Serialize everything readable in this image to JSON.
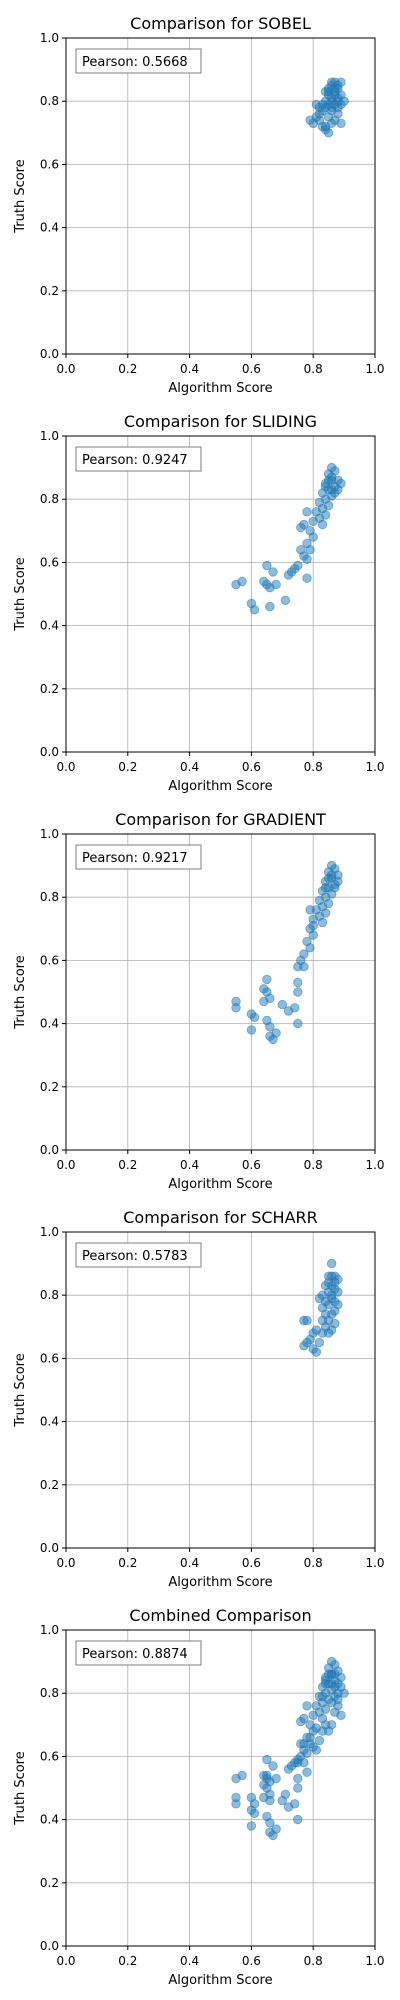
{
  "chart_data": [
    {
      "type": "scatter",
      "title": "Comparison for SOBEL",
      "xlabel": "Algorithm Score",
      "ylabel": "Truth Score",
      "xlim": [
        0,
        1
      ],
      "ylim": [
        0,
        1
      ],
      "xticks": [
        "0.0",
        "0.2",
        "0.4",
        "0.6",
        "0.8",
        "1.0"
      ],
      "yticks": [
        "0.0",
        "0.2",
        "0.4",
        "0.6",
        "0.8",
        "1.0"
      ],
      "grid": true,
      "annotation": "Pearson: 0.5668",
      "color": "#1f77b4",
      "points": [
        [
          0.86,
          0.85
        ],
        [
          0.87,
          0.86
        ],
        [
          0.88,
          0.84
        ],
        [
          0.85,
          0.83
        ],
        [
          0.89,
          0.82
        ],
        [
          0.86,
          0.81
        ],
        [
          0.87,
          0.83
        ],
        [
          0.88,
          0.8
        ],
        [
          0.85,
          0.79
        ],
        [
          0.84,
          0.78
        ],
        [
          0.83,
          0.77
        ],
        [
          0.86,
          0.78
        ],
        [
          0.87,
          0.79
        ],
        [
          0.88,
          0.76
        ],
        [
          0.85,
          0.75
        ],
        [
          0.82,
          0.74
        ],
        [
          0.83,
          0.72
        ],
        [
          0.84,
          0.71
        ],
        [
          0.86,
          0.73
        ],
        [
          0.87,
          0.74
        ],
        [
          0.89,
          0.73
        ],
        [
          0.81,
          0.75
        ],
        [
          0.8,
          0.73
        ],
        [
          0.79,
          0.74
        ],
        [
          0.85,
          0.7
        ],
        [
          0.84,
          0.72
        ],
        [
          0.86,
          0.86
        ],
        [
          0.88,
          0.85
        ],
        [
          0.89,
          0.86
        ],
        [
          0.87,
          0.84
        ],
        [
          0.85,
          0.84
        ],
        [
          0.84,
          0.8
        ],
        [
          0.83,
          0.79
        ],
        [
          0.82,
          0.78
        ],
        [
          0.86,
          0.77
        ],
        [
          0.88,
          0.78
        ],
        [
          0.9,
          0.8
        ],
        [
          0.89,
          0.79
        ],
        [
          0.86,
          0.8
        ],
        [
          0.85,
          0.82
        ],
        [
          0.87,
          0.82
        ],
        [
          0.84,
          0.83
        ],
        [
          0.88,
          0.81
        ],
        [
          0.81,
          0.79
        ],
        [
          0.82,
          0.76
        ]
      ]
    },
    {
      "type": "scatter",
      "title": "Comparison for SLIDING",
      "xlabel": "Algorithm Score",
      "ylabel": "Truth Score",
      "xlim": [
        0,
        1
      ],
      "ylim": [
        0,
        1
      ],
      "xticks": [
        "0.0",
        "0.2",
        "0.4",
        "0.6",
        "0.8",
        "1.0"
      ],
      "yticks": [
        "0.0",
        "0.2",
        "0.4",
        "0.6",
        "0.8",
        "1.0"
      ],
      "grid": true,
      "annotation": "Pearson: 0.9247",
      "color": "#1f77b4",
      "points": [
        [
          0.86,
          0.9
        ],
        [
          0.87,
          0.89
        ],
        [
          0.85,
          0.88
        ],
        [
          0.88,
          0.86
        ],
        [
          0.86,
          0.87
        ],
        [
          0.84,
          0.85
        ],
        [
          0.87,
          0.84
        ],
        [
          0.89,
          0.85
        ],
        [
          0.85,
          0.83
        ],
        [
          0.83,
          0.82
        ],
        [
          0.86,
          0.81
        ],
        [
          0.84,
          0.8
        ],
        [
          0.82,
          0.79
        ],
        [
          0.85,
          0.78
        ],
        [
          0.83,
          0.77
        ],
        [
          0.81,
          0.76
        ],
        [
          0.84,
          0.75
        ],
        [
          0.82,
          0.74
        ],
        [
          0.8,
          0.73
        ],
        [
          0.83,
          0.72
        ],
        [
          0.78,
          0.76
        ],
        [
          0.77,
          0.72
        ],
        [
          0.76,
          0.71
        ],
        [
          0.79,
          0.7
        ],
        [
          0.8,
          0.68
        ],
        [
          0.78,
          0.66
        ],
        [
          0.79,
          0.64
        ],
        [
          0.76,
          0.64
        ],
        [
          0.77,
          0.62
        ],
        [
          0.78,
          0.61
        ],
        [
          0.75,
          0.59
        ],
        [
          0.74,
          0.58
        ],
        [
          0.73,
          0.57
        ],
        [
          0.72,
          0.56
        ],
        [
          0.78,
          0.55
        ],
        [
          0.65,
          0.59
        ],
        [
          0.67,
          0.57
        ],
        [
          0.64,
          0.54
        ],
        [
          0.65,
          0.53
        ],
        [
          0.66,
          0.52
        ],
        [
          0.68,
          0.53
        ],
        [
          0.55,
          0.53
        ],
        [
          0.57,
          0.54
        ],
        [
          0.6,
          0.47
        ],
        [
          0.61,
          0.45
        ],
        [
          0.66,
          0.46
        ],
        [
          0.71,
          0.48
        ],
        [
          0.86,
          0.86
        ],
        [
          0.87,
          0.82
        ],
        [
          0.88,
          0.83
        ],
        [
          0.85,
          0.86
        ],
        [
          0.84,
          0.84
        ],
        [
          0.86,
          0.83
        ]
      ]
    },
    {
      "type": "scatter",
      "title": "Comparison for GRADIENT",
      "xlabel": "Algorithm Score",
      "ylabel": "Truth Score",
      "xlim": [
        0,
        1
      ],
      "ylim": [
        0,
        1
      ],
      "xticks": [
        "0.0",
        "0.2",
        "0.4",
        "0.6",
        "0.8",
        "1.0"
      ],
      "yticks": [
        "0.0",
        "0.2",
        "0.4",
        "0.6",
        "0.8",
        "1.0"
      ],
      "grid": true,
      "annotation": "Pearson: 0.9217",
      "color": "#1f77b4",
      "points": [
        [
          0.86,
          0.9
        ],
        [
          0.87,
          0.89
        ],
        [
          0.88,
          0.87
        ],
        [
          0.85,
          0.88
        ],
        [
          0.86,
          0.86
        ],
        [
          0.84,
          0.85
        ],
        [
          0.87,
          0.84
        ],
        [
          0.85,
          0.83
        ],
        [
          0.83,
          0.82
        ],
        [
          0.86,
          0.81
        ],
        [
          0.84,
          0.8
        ],
        [
          0.82,
          0.79
        ],
        [
          0.85,
          0.78
        ],
        [
          0.83,
          0.77
        ],
        [
          0.81,
          0.76
        ],
        [
          0.84,
          0.75
        ],
        [
          0.82,
          0.74
        ],
        [
          0.8,
          0.73
        ],
        [
          0.83,
          0.72
        ],
        [
          0.79,
          0.76
        ],
        [
          0.8,
          0.71
        ],
        [
          0.79,
          0.7
        ],
        [
          0.8,
          0.68
        ],
        [
          0.78,
          0.66
        ],
        [
          0.79,
          0.64
        ],
        [
          0.77,
          0.62
        ],
        [
          0.76,
          0.6
        ],
        [
          0.75,
          0.58
        ],
        [
          0.77,
          0.58
        ],
        [
          0.75,
          0.53
        ],
        [
          0.75,
          0.5
        ],
        [
          0.74,
          0.45
        ],
        [
          0.75,
          0.4
        ],
        [
          0.72,
          0.44
        ],
        [
          0.7,
          0.46
        ],
        [
          0.65,
          0.54
        ],
        [
          0.64,
          0.51
        ],
        [
          0.65,
          0.5
        ],
        [
          0.66,
          0.48
        ],
        [
          0.64,
          0.47
        ],
        [
          0.65,
          0.41
        ],
        [
          0.66,
          0.39
        ],
        [
          0.6,
          0.43
        ],
        [
          0.6,
          0.38
        ],
        [
          0.61,
          0.42
        ],
        [
          0.55,
          0.47
        ],
        [
          0.55,
          0.45
        ],
        [
          0.66,
          0.36
        ],
        [
          0.67,
          0.35
        ],
        [
          0.68,
          0.37
        ],
        [
          0.86,
          0.87
        ],
        [
          0.87,
          0.83
        ],
        [
          0.88,
          0.85
        ],
        [
          0.85,
          0.86
        ],
        [
          0.84,
          0.83
        ]
      ]
    },
    {
      "type": "scatter",
      "title": "Comparison for SCHARR",
      "xlabel": "Algorithm Score",
      "ylabel": "Truth Score",
      "xlim": [
        0,
        1
      ],
      "ylim": [
        0,
        1
      ],
      "xticks": [
        "0.0",
        "0.2",
        "0.4",
        "0.6",
        "0.8",
        "1.0"
      ],
      "yticks": [
        "0.0",
        "0.2",
        "0.4",
        "0.6",
        "0.8",
        "1.0"
      ],
      "grid": true,
      "annotation": "Pearson: 0.5783",
      "color": "#1f77b4",
      "points": [
        [
          0.86,
          0.9
        ],
        [
          0.87,
          0.86
        ],
        [
          0.88,
          0.85
        ],
        [
          0.85,
          0.84
        ],
        [
          0.86,
          0.83
        ],
        [
          0.84,
          0.83
        ],
        [
          0.87,
          0.82
        ],
        [
          0.85,
          0.81
        ],
        [
          0.83,
          0.8
        ],
        [
          0.86,
          0.79
        ],
        [
          0.84,
          0.78
        ],
        [
          0.82,
          0.79
        ],
        [
          0.85,
          0.77
        ],
        [
          0.83,
          0.76
        ],
        [
          0.87,
          0.75
        ],
        [
          0.84,
          0.74
        ],
        [
          0.86,
          0.74
        ],
        [
          0.88,
          0.77
        ],
        [
          0.85,
          0.72
        ],
        [
          0.83,
          0.72
        ],
        [
          0.84,
          0.7
        ],
        [
          0.87,
          0.71
        ],
        [
          0.86,
          0.69
        ],
        [
          0.83,
          0.68
        ],
        [
          0.81,
          0.69
        ],
        [
          0.8,
          0.68
        ],
        [
          0.78,
          0.72
        ],
        [
          0.77,
          0.72
        ],
        [
          0.79,
          0.66
        ],
        [
          0.78,
          0.65
        ],
        [
          0.77,
          0.64
        ],
        [
          0.82,
          0.65
        ],
        [
          0.81,
          0.62
        ],
        [
          0.8,
          0.63
        ],
        [
          0.85,
          0.68
        ],
        [
          0.86,
          0.86
        ],
        [
          0.87,
          0.84
        ],
        [
          0.88,
          0.81
        ],
        [
          0.85,
          0.86
        ],
        [
          0.86,
          0.8
        ],
        [
          0.87,
          0.78
        ]
      ]
    },
    {
      "type": "scatter",
      "title": "Combined Comparison",
      "xlabel": "Algorithm Score",
      "ylabel": "Truth Score",
      "xlim": [
        0,
        1
      ],
      "ylim": [
        0,
        1
      ],
      "xticks": [
        "0.0",
        "0.2",
        "0.4",
        "0.6",
        "0.8",
        "1.0"
      ],
      "yticks": [
        "0.0",
        "0.2",
        "0.4",
        "0.6",
        "0.8",
        "1.0"
      ],
      "grid": true,
      "annotation": "Pearson: 0.8874",
      "color": "#1f77b4",
      "points": [
        [
          0.86,
          0.9
        ],
        [
          0.87,
          0.89
        ],
        [
          0.88,
          0.87
        ],
        [
          0.85,
          0.88
        ],
        [
          0.86,
          0.86
        ],
        [
          0.84,
          0.85
        ],
        [
          0.87,
          0.84
        ],
        [
          0.89,
          0.85
        ],
        [
          0.85,
          0.83
        ],
        [
          0.83,
          0.82
        ],
        [
          0.86,
          0.81
        ],
        [
          0.84,
          0.8
        ],
        [
          0.82,
          0.79
        ],
        [
          0.85,
          0.78
        ],
        [
          0.83,
          0.77
        ],
        [
          0.81,
          0.76
        ],
        [
          0.84,
          0.75
        ],
        [
          0.82,
          0.74
        ],
        [
          0.8,
          0.73
        ],
        [
          0.83,
          0.72
        ],
        [
          0.88,
          0.8
        ],
        [
          0.89,
          0.82
        ],
        [
          0.87,
          0.74
        ],
        [
          0.88,
          0.76
        ],
        [
          0.89,
          0.73
        ],
        [
          0.86,
          0.7
        ],
        [
          0.84,
          0.7
        ],
        [
          0.78,
          0.76
        ],
        [
          0.77,
          0.72
        ],
        [
          0.76,
          0.71
        ],
        [
          0.79,
          0.7
        ],
        [
          0.8,
          0.68
        ],
        [
          0.78,
          0.66
        ],
        [
          0.79,
          0.64
        ],
        [
          0.76,
          0.64
        ],
        [
          0.77,
          0.62
        ],
        [
          0.78,
          0.61
        ],
        [
          0.75,
          0.59
        ],
        [
          0.74,
          0.58
        ],
        [
          0.73,
          0.57
        ],
        [
          0.72,
          0.56
        ],
        [
          0.78,
          0.55
        ],
        [
          0.76,
          0.6
        ],
        [
          0.75,
          0.58
        ],
        [
          0.77,
          0.58
        ],
        [
          0.75,
          0.53
        ],
        [
          0.75,
          0.5
        ],
        [
          0.74,
          0.45
        ],
        [
          0.75,
          0.4
        ],
        [
          0.72,
          0.44
        ],
        [
          0.7,
          0.46
        ],
        [
          0.71,
          0.48
        ],
        [
          0.65,
          0.59
        ],
        [
          0.67,
          0.57
        ],
        [
          0.64,
          0.54
        ],
        [
          0.65,
          0.53
        ],
        [
          0.66,
          0.52
        ],
        [
          0.68,
          0.53
        ],
        [
          0.65,
          0.54
        ],
        [
          0.64,
          0.51
        ],
        [
          0.65,
          0.5
        ],
        [
          0.66,
          0.48
        ],
        [
          0.64,
          0.47
        ],
        [
          0.65,
          0.41
        ],
        [
          0.66,
          0.39
        ],
        [
          0.66,
          0.46
        ],
        [
          0.55,
          0.53
        ],
        [
          0.57,
          0.54
        ],
        [
          0.6,
          0.47
        ],
        [
          0.61,
          0.45
        ],
        [
          0.6,
          0.43
        ],
        [
          0.6,
          0.38
        ],
        [
          0.61,
          0.42
        ],
        [
          0.55,
          0.47
        ],
        [
          0.55,
          0.45
        ],
        [
          0.66,
          0.36
        ],
        [
          0.67,
          0.35
        ],
        [
          0.68,
          0.37
        ],
        [
          0.81,
          0.62
        ],
        [
          0.8,
          0.63
        ],
        [
          0.82,
          0.65
        ],
        [
          0.79,
          0.66
        ],
        [
          0.77,
          0.64
        ],
        [
          0.81,
          0.69
        ],
        [
          0.83,
          0.68
        ],
        [
          0.85,
          0.68
        ],
        [
          0.86,
          0.86
        ],
        [
          0.87,
          0.82
        ],
        [
          0.88,
          0.83
        ],
        [
          0.85,
          0.86
        ],
        [
          0.84,
          0.84
        ],
        [
          0.86,
          0.83
        ],
        [
          0.9,
          0.8
        ],
        [
          0.88,
          0.78
        ],
        [
          0.87,
          0.79
        ],
        [
          0.86,
          0.77
        ],
        [
          0.83,
          0.79
        ],
        [
          0.84,
          0.83
        ],
        [
          0.87,
          0.86
        ]
      ]
    }
  ]
}
